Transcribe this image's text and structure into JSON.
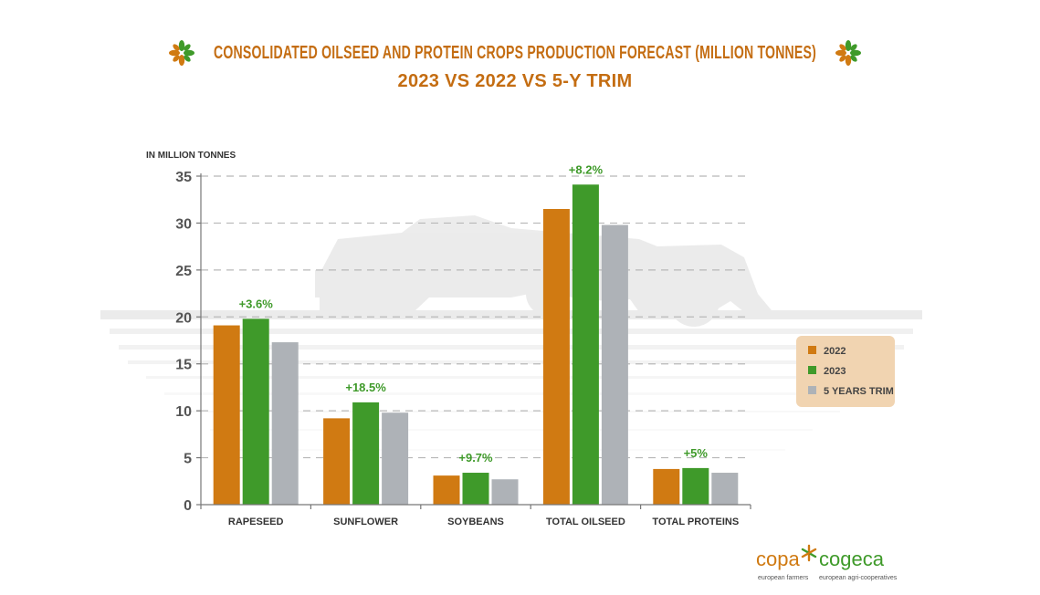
{
  "colors": {
    "accent": "#c46d12",
    "green": "#3f9a2a",
    "orange": "#d07a12",
    "gray": "#aeb2b7",
    "legend_bg": "#f1d4b1"
  },
  "chart_data": {
    "type": "bar",
    "title": "CONSOLIDATED OILSEED AND PROTEIN CROPS PRODUCTION FORECAST (MILLION TONNES)",
    "subtitle": "2023 VS 2022 VS 5-Y TRIM",
    "ylabel": "IN MILLION TONNES",
    "ylim": [
      0,
      35
    ],
    "yticks": [
      "0",
      "5",
      "10",
      "15",
      "20",
      "25",
      "30",
      "35"
    ],
    "grid": true,
    "legend_position": "right",
    "categories": [
      "RAPESEED",
      "SUNFLOWER",
      "SOYBEANS",
      "TOTAL OILSEED",
      "TOTAL PROTEINS"
    ],
    "series": [
      {
        "name": "2022",
        "color": "#d07a12",
        "values": [
          19.1,
          9.2,
          3.1,
          31.5,
          3.8
        ]
      },
      {
        "name": "2023",
        "color": "#3f9a2a",
        "values": [
          19.8,
          10.9,
          3.4,
          34.1,
          3.9
        ]
      },
      {
        "name": "5 YEARS TRIM",
        "color": "#aeb2b7",
        "values": [
          17.3,
          9.8,
          2.7,
          29.8,
          3.4
        ]
      }
    ],
    "change_labels": [
      "+3.6%",
      "+18.5%",
      "+9.7%",
      "+8.2%",
      "+5%"
    ]
  },
  "logo": {
    "left": "copa",
    "right": "cogeca",
    "left_tagline": "european farmers",
    "right_tagline": "european agri-cooperatives",
    "icon": "asterisk-flower-icon"
  },
  "decor": {
    "title_icon": "flower-ornament-icon",
    "background_icon": "combine-harvester-field-icon"
  }
}
